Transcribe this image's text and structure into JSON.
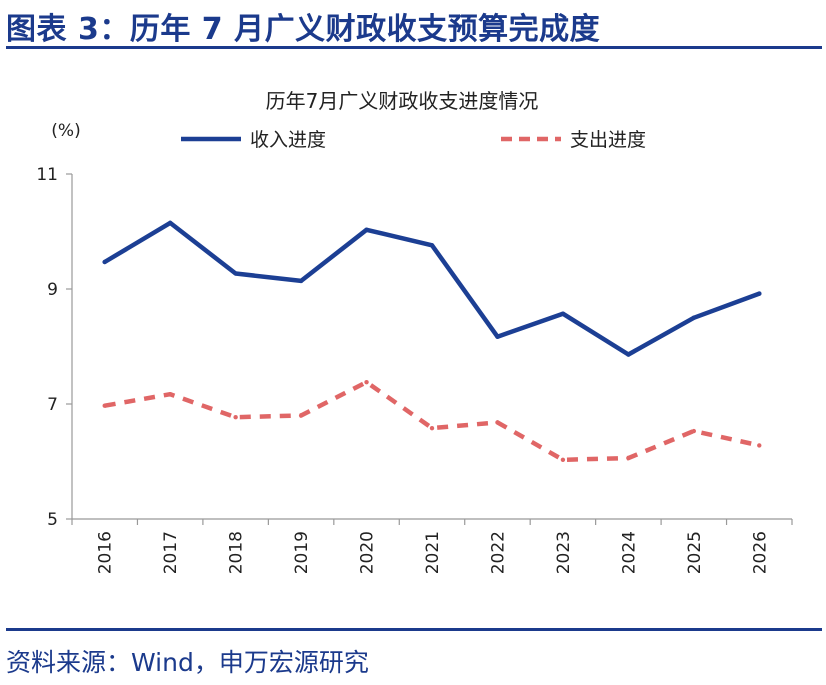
{
  "figure": {
    "title": "图表 3：历年 7 月广义财政收支预算完成度",
    "source": "资料来源：Wind，申万宏源研究"
  },
  "colors": {
    "accent": "#1b3a8c",
    "income": "#1c3f94",
    "expense": "#e06666"
  },
  "chart_data": {
    "type": "line",
    "title": "历年7月广义财政收支进度情况",
    "ylabel": "(%)",
    "xlabel": "",
    "categories": [
      "2016",
      "2017",
      "2018",
      "2019",
      "2020",
      "2021",
      "2022",
      "2023",
      "2024",
      "2025",
      "2026"
    ],
    "series": [
      {
        "name": "收入进度",
        "style": "solid",
        "values": [
          9.47,
          10.15,
          9.27,
          9.14,
          10.03,
          9.76,
          8.17,
          8.57,
          7.86,
          8.5,
          8.92
        ]
      },
      {
        "name": "支出进度",
        "style": "dashed",
        "values": [
          6.97,
          7.17,
          6.77,
          6.8,
          7.38,
          6.58,
          6.68,
          6.03,
          6.06,
          6.53,
          6.28
        ]
      }
    ],
    "ylim": [
      5,
      11
    ],
    "yticks": [
      5,
      7,
      9,
      11
    ],
    "grid": false,
    "legend": "top"
  }
}
